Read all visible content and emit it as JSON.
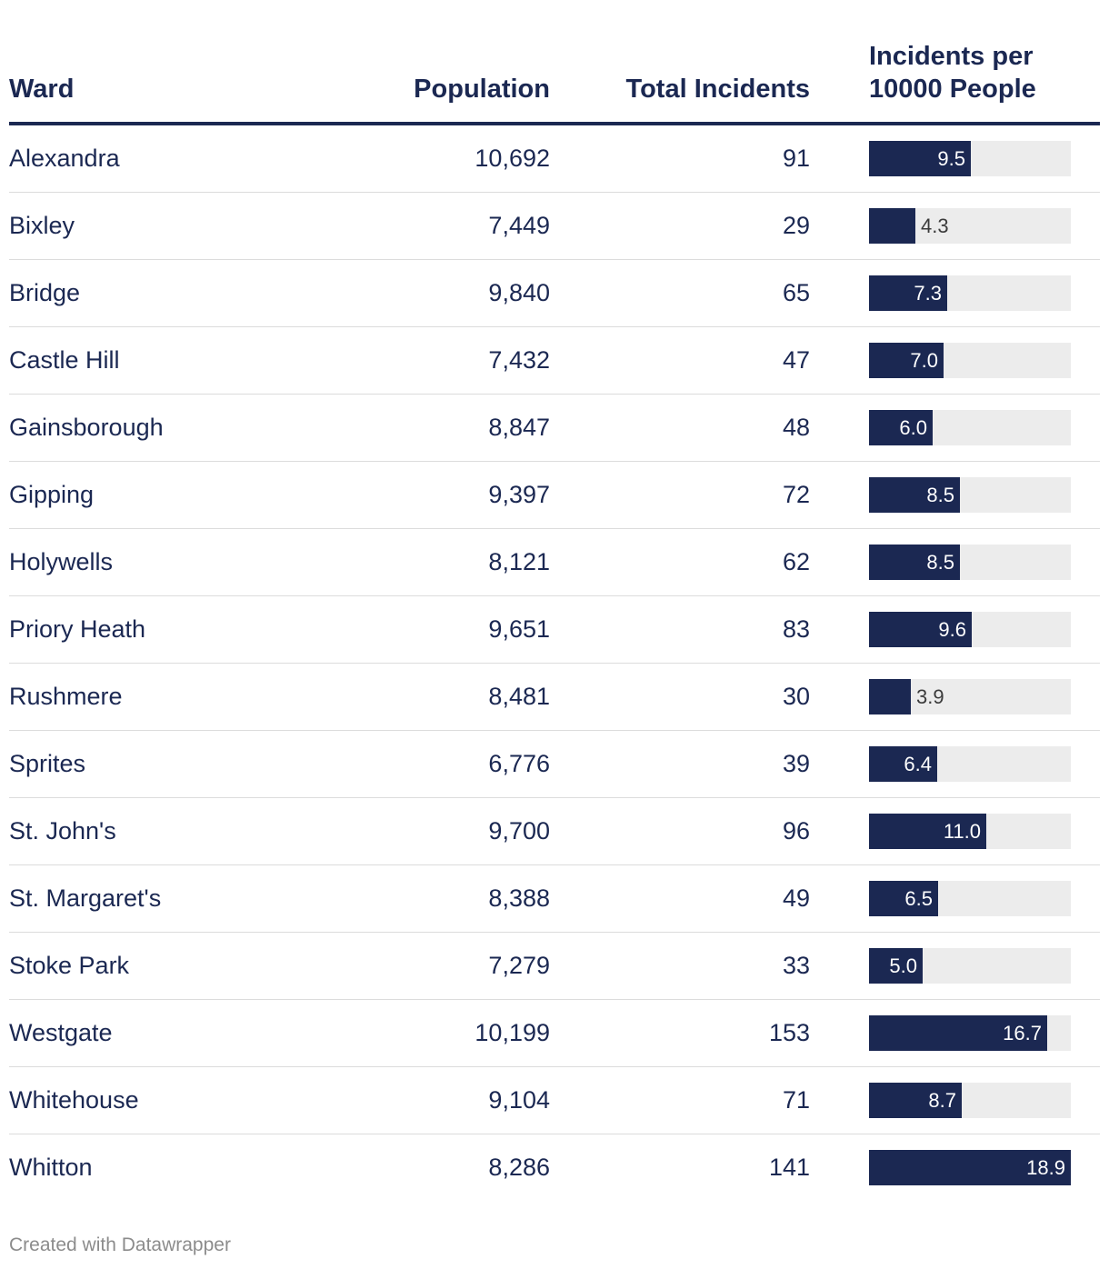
{
  "chart_data": {
    "type": "table",
    "columns": [
      "Ward",
      "Population",
      "Total Incidents",
      "Incidents per 10000 People"
    ],
    "header": {
      "ward": "Ward",
      "population": "Population",
      "incidents": "Total Incidents",
      "rate_line1": "Incidents per",
      "rate_line2": "10000 People"
    },
    "rate_max": 18.9,
    "rows": [
      {
        "ward": "Alexandra",
        "population": "10,692",
        "incidents": "91",
        "rate": 9.5,
        "rate_label": "9.5"
      },
      {
        "ward": "Bixley",
        "population": "7,449",
        "incidents": "29",
        "rate": 4.3,
        "rate_label": "4.3"
      },
      {
        "ward": "Bridge",
        "population": "9,840",
        "incidents": "65",
        "rate": 7.3,
        "rate_label": "7.3"
      },
      {
        "ward": "Castle Hill",
        "population": "7,432",
        "incidents": "47",
        "rate": 7.0,
        "rate_label": "7.0"
      },
      {
        "ward": "Gainsborough",
        "population": "8,847",
        "incidents": "48",
        "rate": 6.0,
        "rate_label": "6.0"
      },
      {
        "ward": "Gipping",
        "population": "9,397",
        "incidents": "72",
        "rate": 8.5,
        "rate_label": "8.5"
      },
      {
        "ward": "Holywells",
        "population": "8,121",
        "incidents": "62",
        "rate": 8.5,
        "rate_label": "8.5"
      },
      {
        "ward": "Priory Heath",
        "population": "9,651",
        "incidents": "83",
        "rate": 9.6,
        "rate_label": "9.6"
      },
      {
        "ward": "Rushmere",
        "population": "8,481",
        "incidents": "30",
        "rate": 3.9,
        "rate_label": "3.9"
      },
      {
        "ward": "Sprites",
        "population": "6,776",
        "incidents": "39",
        "rate": 6.4,
        "rate_label": "6.4"
      },
      {
        "ward": "St. John's",
        "population": "9,700",
        "incidents": "96",
        "rate": 11.0,
        "rate_label": "11.0"
      },
      {
        "ward": "St. Margaret's",
        "population": "8,388",
        "incidents": "49",
        "rate": 6.5,
        "rate_label": "6.5"
      },
      {
        "ward": "Stoke Park",
        "population": "7,279",
        "incidents": "33",
        "rate": 5.0,
        "rate_label": "5.0"
      },
      {
        "ward": "Westgate",
        "population": "10,199",
        "incidents": "153",
        "rate": 16.7,
        "rate_label": "16.7"
      },
      {
        "ward": "Whitehouse",
        "population": "9,104",
        "incidents": "71",
        "rate": 8.7,
        "rate_label": "8.7"
      },
      {
        "ward": "Whitton",
        "population": "8,286",
        "incidents": "141",
        "rate": 18.9,
        "rate_label": "18.9"
      }
    ]
  },
  "footer": {
    "credit": "Created with Datawrapper"
  },
  "colors": {
    "text": "#1b2852",
    "bar": "#1b2852",
    "bar_track": "#ececec",
    "rule": "#dcdcdc",
    "footer": "#8c8c8c"
  }
}
